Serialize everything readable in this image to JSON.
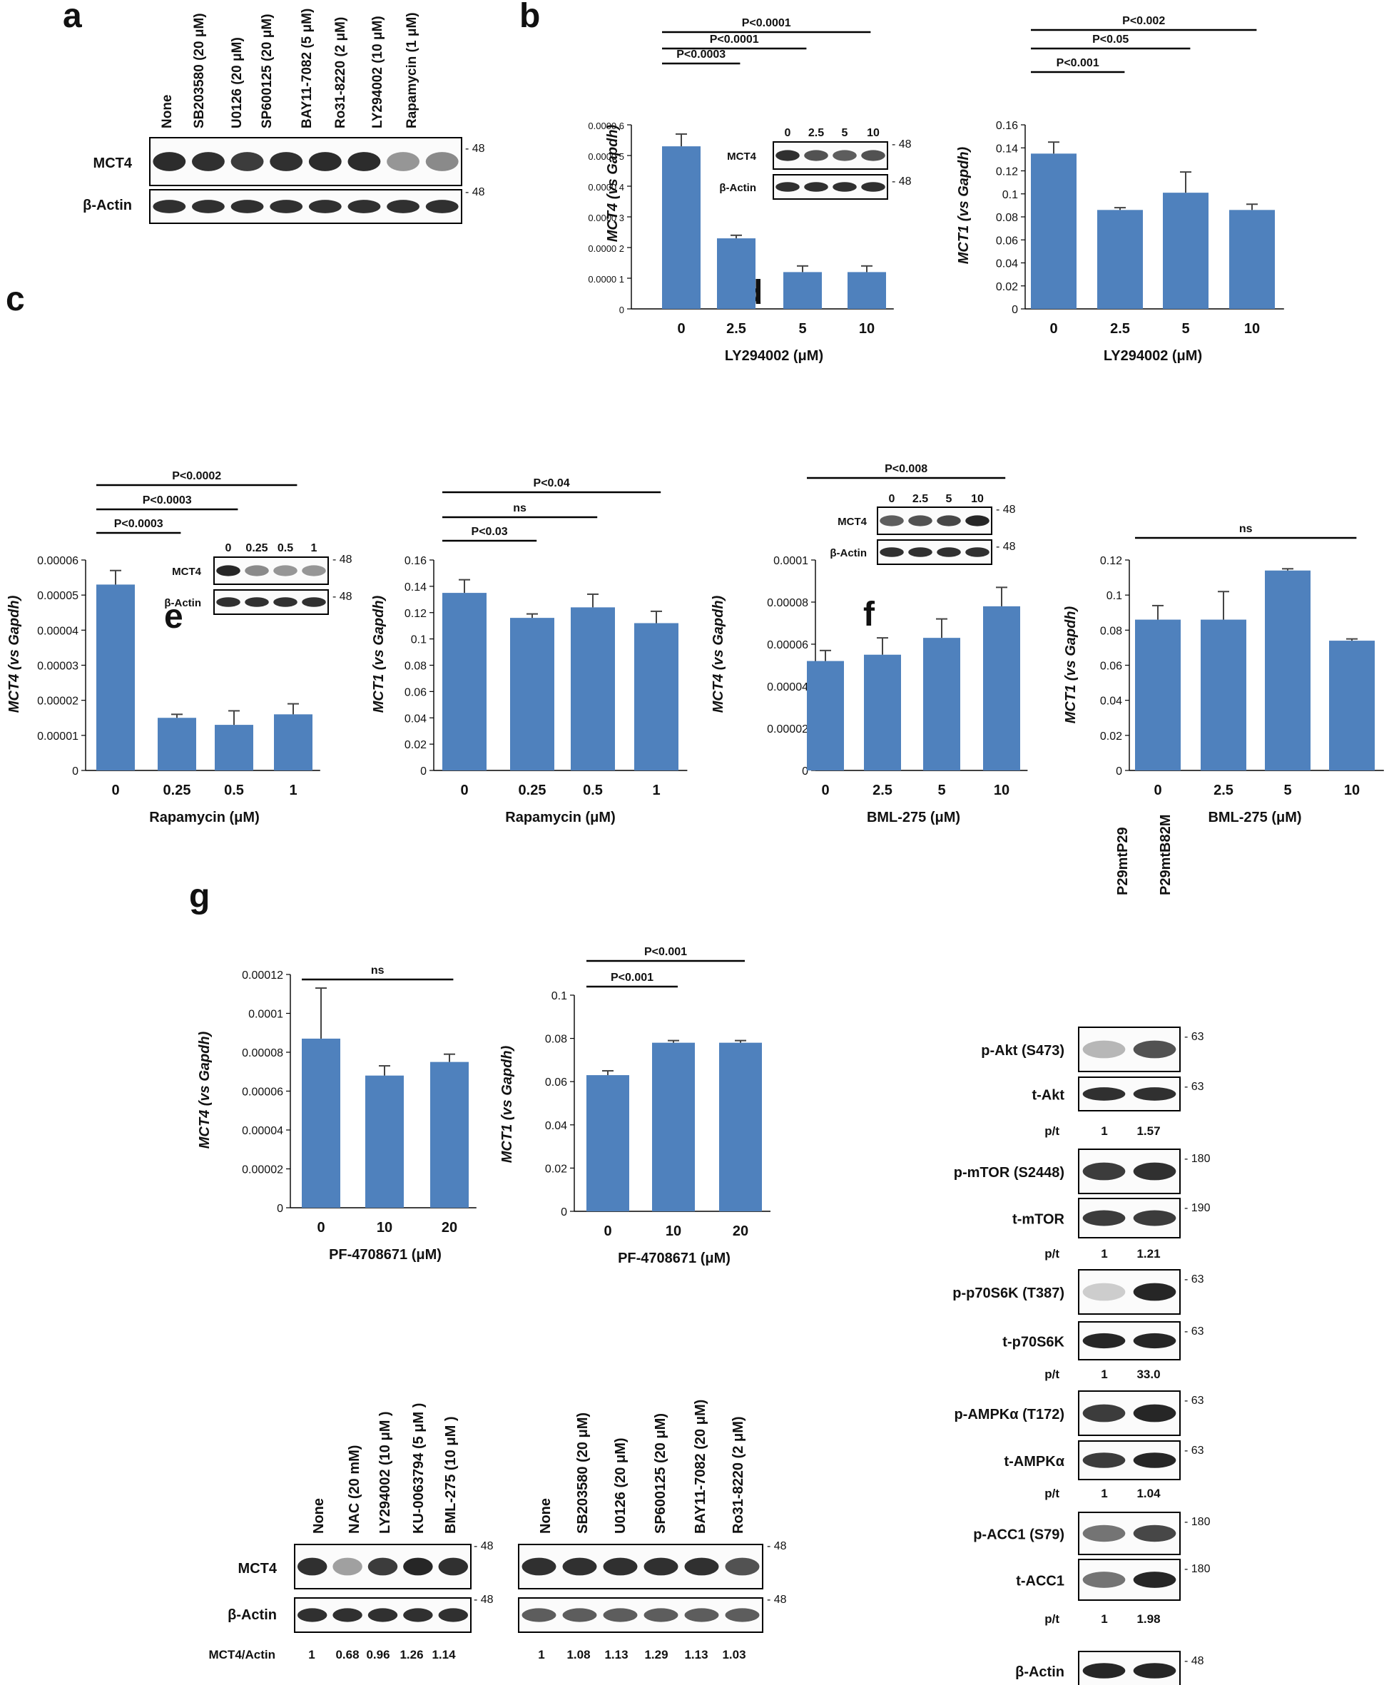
{
  "panel_letters": {
    "a": "a",
    "b": "b",
    "c": "c",
    "d": "d",
    "e": "e",
    "f": "f",
    "g": "g"
  },
  "colors": {
    "bar": "#4f81bd",
    "axis": "#000000",
    "text": "#111111",
    "band": "#1a1a1a"
  },
  "common": {
    "um": "(μM)"
  },
  "mw": {
    "m48": "- 48",
    "m63": "- 63",
    "m180": "- 180",
    "m190": "- 190"
  },
  "panel_a": {
    "lanes": [
      "None",
      "SB203580 (20 μM)",
      "U0126 (20 μM)",
      "SP600125 (20 μM)",
      "BAY11-7082 (5 μM)",
      "Ro31-8220 (2 μM)",
      "LY294002 (10 μM)",
      "Rapamycin (1 μM)"
    ],
    "rows": [
      "MCT4",
      "β-Actin"
    ]
  },
  "inset_b": {
    "lanes": [
      "0",
      "2.5",
      "5",
      "10"
    ],
    "rows": [
      "MCT4",
      "β-Actin"
    ]
  },
  "inset_c": {
    "lanes": [
      "0",
      "0.25",
      "0.5",
      "1"
    ],
    "rows": [
      "MCT4",
      "β-Actin"
    ]
  },
  "inset_d": {
    "lanes": [
      "0",
      "2.5",
      "5",
      "10"
    ],
    "rows": [
      "MCT4",
      "β-Actin"
    ]
  },
  "panel_f": {
    "lanes": [
      "P29mtP29",
      "P29mtB82M"
    ],
    "rows": [
      "p-Akt (S473)",
      "t-Akt",
      "p-mTOR (S2448)",
      "t-mTOR",
      "p-p70S6K (T387)",
      "t-p70S6K",
      "p-AMPKα (T172)",
      "t-AMPKα",
      "p-ACC1 (S79)",
      "t-ACC1",
      "β-Actin"
    ],
    "pt_label": "p/t",
    "ratios": [
      [
        "1",
        "1.57"
      ],
      [
        "1",
        "1.21"
      ],
      [
        "1",
        "33.0"
      ],
      [
        "1",
        "1.04"
      ],
      [
        "1",
        "1.98"
      ]
    ]
  },
  "panel_g": {
    "left_lanes": [
      "None",
      "NAC (20 mM)",
      "LY294002 (10 μM )",
      "KU-0063794 (5 μM )",
      "BML-275 (10 μM )"
    ],
    "right_lanes": [
      "None",
      "SB203580 (20 μM)",
      "U0126 (20 μM)",
      "SP600125 (20 μM)",
      "BAY11-7082 (20 μM)",
      "Ro31-8220 (2 μM)"
    ],
    "rows": [
      "MCT4",
      "β-Actin"
    ],
    "ratio_label": "MCT4/Actin",
    "left_ratios": [
      "1",
      "0.68",
      "0.96",
      "1.26",
      "1.14"
    ],
    "right_ratios": [
      "1",
      "1.08",
      "1.13",
      "1.29",
      "1.13",
      "1.03"
    ]
  },
  "chart_data": [
    {
      "id": "b1",
      "type": "bar",
      "categories": [
        "0",
        "2.5",
        "5",
        "10"
      ],
      "values": [
        5.3e-05,
        2.3e-05,
        1.2e-05,
        1.2e-05
      ],
      "errors": [
        4e-06,
        1e-06,
        2e-06,
        2e-06
      ],
      "ylim": [
        0,
        6e-05
      ],
      "yticks": [
        "0",
        "0.0000 1",
        "0.0000 2",
        "0.0000 3",
        "0.0000 4",
        "0.0000 5",
        "0.0000 6"
      ],
      "ylabel": "MCT4 (vs Gapdh)",
      "xlabel": "LY294002 (μM)",
      "sig": [
        {
          "label": "P<0.0003",
          "from": 0,
          "to": 1
        },
        {
          "label": "P<0.0001",
          "from": 0,
          "to": 2
        },
        {
          "label": "P<0.0001",
          "from": 0,
          "to": 3
        }
      ]
    },
    {
      "id": "b2",
      "type": "bar",
      "categories": [
        "0",
        "2.5",
        "5",
        "10"
      ],
      "values": [
        0.135,
        0.086,
        0.101,
        0.086
      ],
      "errors": [
        0.01,
        0.002,
        0.018,
        0.005
      ],
      "ylim": [
        0,
        0.16
      ],
      "yticks": [
        "0",
        "0.02",
        "0.04",
        "0.06",
        "0.08",
        "0.1",
        "0.12",
        "0.14",
        "0.16"
      ],
      "ylabel": "MCT1 (vs Gapdh)",
      "xlabel": "LY294002 (μM)",
      "sig": [
        {
          "label": "P<0.001",
          "from": 0,
          "to": 1
        },
        {
          "label": "P<0.05",
          "from": 0,
          "to": 2
        },
        {
          "label": "P<0.002",
          "from": 0,
          "to": 3
        }
      ]
    },
    {
      "id": "c1",
      "type": "bar",
      "categories": [
        "0",
        "0.25",
        "0.5",
        "1"
      ],
      "values": [
        5.3e-05,
        1.5e-05,
        1.3e-05,
        1.6e-05
      ],
      "errors": [
        4e-06,
        1e-06,
        4e-06,
        3e-06
      ],
      "ylim": [
        0,
        6e-05
      ],
      "yticks": [
        "0",
        "0.00001",
        "0.00002",
        "0.00003",
        "0.00004",
        "0.00005",
        "0.00006"
      ],
      "ylabel": "MCT4 (vs Gapdh)",
      "xlabel": "Rapamycin (μM)",
      "sig": [
        {
          "label": "P<0.0003",
          "from": 0,
          "to": 1
        },
        {
          "label": "P<0.0003",
          "from": 0,
          "to": 2
        },
        {
          "label": "P<0.0002",
          "from": 0,
          "to": 3
        }
      ]
    },
    {
      "id": "c2",
      "type": "bar",
      "categories": [
        "0",
        "0.25",
        "0.5",
        "1"
      ],
      "values": [
        0.135,
        0.116,
        0.124,
        0.112
      ],
      "errors": [
        0.01,
        0.003,
        0.01,
        0.009
      ],
      "ylim": [
        0,
        0.16
      ],
      "yticks": [
        "0",
        "0.02",
        "0.04",
        "0.06",
        "0.08",
        "0.1",
        "0.12",
        "0.14",
        "0.16"
      ],
      "ylabel": "MCT1 (vs Gapdh)",
      "xlabel": "Rapamycin (μM)",
      "sig": [
        {
          "label": "P<0.03",
          "from": 0,
          "to": 1
        },
        {
          "label": "ns",
          "from": 0,
          "to": 2
        },
        {
          "label": "P<0.04",
          "from": 0,
          "to": 3
        }
      ]
    },
    {
      "id": "d1",
      "type": "bar",
      "categories": [
        "0",
        "2.5",
        "5",
        "10"
      ],
      "values": [
        5.2e-05,
        5.5e-05,
        6.3e-05,
        7.8e-05
      ],
      "errors": [
        5e-06,
        8e-06,
        9e-06,
        9e-06
      ],
      "ylim": [
        0,
        0.0001
      ],
      "yticks": [
        "0",
        "0.00002",
        "0.00004",
        "0.00006",
        "0.00008",
        "0.0001"
      ],
      "ylabel": "MCT4 (vs Gapdh)",
      "xlabel": "BML-275 (μM)",
      "sig": [
        {
          "label": "P<0.008",
          "from": 0,
          "to": 3
        }
      ]
    },
    {
      "id": "d2",
      "type": "bar",
      "categories": [
        "0",
        "2.5",
        "5",
        "10"
      ],
      "values": [
        0.086,
        0.086,
        0.114,
        0.074
      ],
      "errors": [
        0.008,
        0.016,
        0.001,
        0.001
      ],
      "ylim": [
        0,
        0.12
      ],
      "yticks": [
        "0",
        "0.02",
        "0.04",
        "0.06",
        "0.08",
        "0.1",
        "0.12"
      ],
      "ylabel": "MCT1 (vs Gapdh)",
      "xlabel": "BML-275 (μM)",
      "sig": [
        {
          "label": "ns",
          "from": 0,
          "to": 3
        }
      ]
    },
    {
      "id": "e1",
      "type": "bar",
      "categories": [
        "0",
        "10",
        "20"
      ],
      "values": [
        8.7e-05,
        6.8e-05,
        7.5e-05
      ],
      "errors": [
        2.6e-05,
        5e-06,
        4e-06
      ],
      "ylim": [
        0,
        0.00012
      ],
      "yticks": [
        "0",
        "0.00002",
        "0.00004",
        "0.00006",
        "0.00008",
        "0.0001",
        "0.00012"
      ],
      "ylabel": "MCT4 (vs Gapdh)",
      "xlabel": "PF-4708671 (μM)",
      "sig": [
        {
          "label": "ns",
          "from": 0,
          "to": 2
        }
      ]
    },
    {
      "id": "e2",
      "type": "bar",
      "categories": [
        "0",
        "10",
        "20"
      ],
      "values": [
        0.063,
        0.078,
        0.078
      ],
      "errors": [
        0.002,
        0.001,
        0.001
      ],
      "ylim": [
        0,
        0.1
      ],
      "yticks": [
        "0",
        "0.02",
        "0.04",
        "0.06",
        "0.08",
        "0.1"
      ],
      "ylabel": "MCT1 (vs Gapdh)",
      "xlabel": "PF-4708671 (μM)",
      "sig": [
        {
          "label": "P<0.001",
          "from": 0,
          "to": 1
        },
        {
          "label": "P<0.001",
          "from": 0,
          "to": 2
        }
      ]
    }
  ]
}
